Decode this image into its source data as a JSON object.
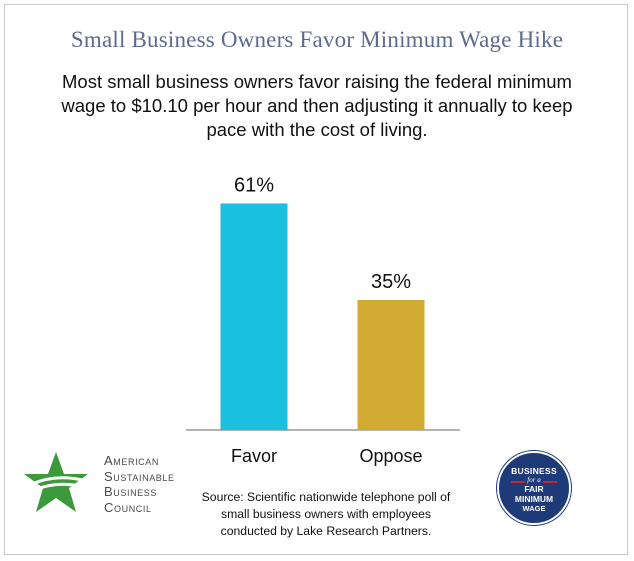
{
  "header": {
    "title": "Small Business Owners Favor Minimum Wage Hike",
    "subtitle": "Most small business owners favor raising the federal minimum wage to $10.10 per hour and then adjusting it annually to keep pace with the cost of living."
  },
  "chart_data": {
    "type": "bar",
    "title": "Small Business Owners Favor Minimum Wage Hike",
    "categories": [
      "Favor",
      "Oppose"
    ],
    "values": [
      61,
      35
    ],
    "value_labels": [
      "61%",
      "35%"
    ],
    "colors": [
      "#1bbfe0",
      "#d2ab32"
    ],
    "ylim": [
      0,
      70
    ],
    "grid": false
  },
  "footer": {
    "source": "Source: Scientific nationwide telephone poll of small business owners with employees conducted by Lake Research Partners.",
    "left_logo": {
      "icon": "star-icon",
      "color": "#3c9a3c",
      "lines": [
        "American",
        "Sustainable",
        "Business",
        "Council"
      ]
    },
    "right_badge": {
      "color": "#1f3a78",
      "lines": [
        "BUSINESS",
        "for a",
        "FAIR",
        "MINIMUM",
        "WAGE"
      ]
    }
  }
}
